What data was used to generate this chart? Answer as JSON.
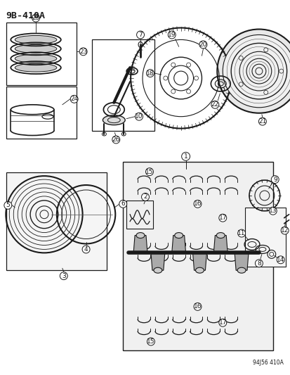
{
  "bg_color": "#ffffff",
  "line_color": "#1a1a1a",
  "title": "9B-410A",
  "footnote": "94J56 410A",
  "fig_width": 4.14,
  "fig_height": 5.33,
  "dpi": 100
}
